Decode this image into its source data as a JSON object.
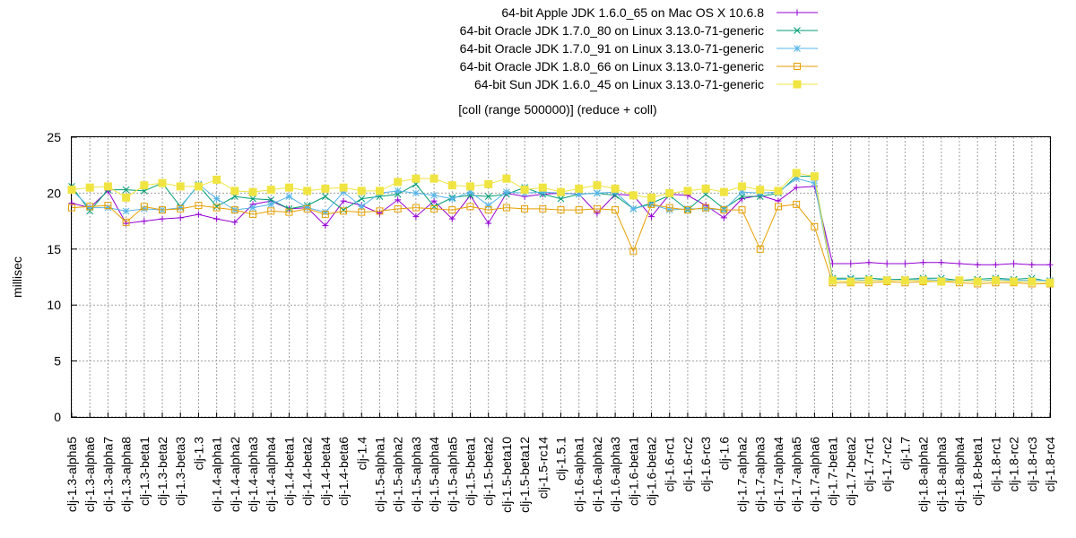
{
  "chart_data": {
    "type": "line",
    "title": "[coll (range 500000)] (reduce + coll)",
    "xlabel": "",
    "ylabel": "millisec",
    "ylim": [
      0,
      25
    ],
    "yticks": [
      0,
      5,
      10,
      15,
      20,
      25
    ],
    "grid": true,
    "legend_position": "top-right",
    "categories": [
      "clj-1.3-alpha5",
      "clj-1.3-alpha6",
      "clj-1.3-alpha7",
      "clj-1.3-alpha8",
      "clj-1.3-beta1",
      "clj-1.3-beta2",
      "clj-1.3-beta3",
      "clj-1.3",
      "clj-1.4-alpha1",
      "clj-1.4-alpha2",
      "clj-1.4-alpha3",
      "clj-1.4-alpha4",
      "clj-1.4-beta1",
      "clj-1.4-beta2",
      "clj-1.4-beta4",
      "clj-1.4-beta6",
      "clj-1.4",
      "clj-1.5-alpha1",
      "clj-1.5-alpha2",
      "clj-1.5-alpha3",
      "clj-1.5-alpha4",
      "clj-1.5-alpha5",
      "clj-1.5-beta1",
      "clj-1.5-beta2",
      "clj-1.5-beta10",
      "clj-1.5-beta12",
      "clj-1.5-rc14",
      "clj-1.5.1",
      "clj-1.6-alpha1",
      "clj-1.6-alpha2",
      "clj-1.6-alpha3",
      "clj-1.6-beta1",
      "clj-1.6-beta2",
      "clj-1.6-rc1",
      "clj-1.6-rc2",
      "clj-1.6-rc3",
      "clj-1.6",
      "clj-1.7-alpha2",
      "clj-1.7-alpha3",
      "clj-1.7-alpha4",
      "clj-1.7-alpha5",
      "clj-1.7-alpha6",
      "clj-1.7-beta1",
      "clj-1.7-beta2",
      "clj-1.7-rc1",
      "clj-1.7-rc2",
      "clj-1.7",
      "clj-1.8-alpha2",
      "clj-1.8-alpha3",
      "clj-1.8-alpha4",
      "clj-1.8-beta1",
      "clj-1.8-rc1",
      "clj-1.8-rc2",
      "clj-1.8-rc3",
      "clj-1.8-rc4"
    ],
    "series": [
      {
        "name": "64-bit Apple JDK 1.6.0_65 on Mac OS X 10.6.8",
        "color": "#9400d3",
        "marker": "plus",
        "values": [
          19.1,
          18.7,
          20.2,
          17.3,
          17.5,
          17.7,
          17.8,
          18.1,
          17.7,
          17.4,
          19.0,
          19.3,
          18.6,
          18.7,
          17.1,
          19.3,
          18.9,
          18.2,
          19.4,
          17.9,
          19.3,
          17.7,
          19.8,
          17.3,
          20.0,
          19.7,
          19.9,
          20.0,
          19.9,
          18.2,
          19.9,
          19.8,
          17.9,
          19.9,
          19.8,
          18.9,
          17.8,
          19.5,
          19.8,
          19.3,
          20.5,
          20.6,
          13.7,
          13.7,
          13.8,
          13.7,
          13.7,
          13.8,
          13.8,
          13.7,
          13.6,
          13.6,
          13.7,
          13.6,
          13.6
        ]
      },
      {
        "name": "64-bit Oracle JDK 1.7.0_80 on Linux 3.13.0-71-generic",
        "color": "#009e73",
        "marker": "x",
        "values": [
          20.6,
          18.4,
          20.3,
          20.3,
          20.2,
          20.9,
          18.8,
          20.7,
          18.8,
          19.7,
          19.5,
          19.4,
          18.6,
          18.9,
          19.7,
          18.5,
          19.5,
          19.7,
          19.9,
          20.8,
          18.8,
          19.6,
          19.8,
          19.7,
          19.9,
          20.5,
          19.9,
          19.5,
          19.9,
          20.0,
          19.8,
          18.6,
          19.1,
          19.8,
          18.5,
          19.9,
          18.6,
          19.7,
          19.7,
          20.0,
          21.5,
          21.5,
          12.4,
          12.4,
          12.4,
          12.3,
          12.3,
          12.4,
          12.4,
          12.2,
          12.3,
          12.4,
          12.3,
          12.4,
          12.1
        ]
      },
      {
        "name": "64-bit Oracle JDK 1.7.0_91 on Linux 3.13.0-71-generic",
        "color": "#56b4e9",
        "marker": "star",
        "values": [
          20.3,
          18.7,
          18.7,
          18.4,
          18.6,
          18.5,
          18.7,
          20.8,
          19.5,
          18.5,
          18.7,
          19.0,
          19.7,
          18.7,
          18.3,
          20.1,
          18.8,
          20.0,
          20.2,
          20.0,
          19.8,
          19.5,
          20.1,
          18.9,
          20.1,
          20.0,
          20.1,
          20.0,
          19.9,
          20.0,
          20.1,
          18.6,
          19.0,
          18.5,
          18.6,
          18.6,
          18.5,
          20.1,
          20.0,
          20.1,
          21.3,
          20.9,
          12.3,
          12.3,
          12.2,
          12.3,
          12.2,
          12.3,
          12.2,
          12.2,
          12.1,
          12.3,
          12.2,
          12.2,
          12.2
        ]
      },
      {
        "name": "64-bit Oracle JDK 1.8.0_66 on Linux 3.13.0-71-generic",
        "color": "#e69f00",
        "marker": "square-open",
        "values": [
          18.7,
          18.8,
          18.9,
          17.4,
          18.8,
          18.5,
          18.6,
          18.9,
          18.7,
          18.5,
          18.1,
          18.4,
          18.3,
          18.6,
          18.1,
          18.4,
          18.3,
          18.4,
          18.6,
          18.7,
          18.6,
          18.5,
          18.8,
          18.5,
          18.7,
          18.6,
          18.6,
          18.5,
          18.5,
          18.6,
          18.5,
          14.8,
          19.0,
          18.7,
          18.5,
          18.7,
          18.5,
          18.5,
          15.0,
          18.8,
          19.0,
          17.0,
          12.0,
          12.0,
          12.0,
          12.1,
          12.0,
          12.1,
          12.1,
          12.0,
          11.9,
          12.0,
          12.0,
          11.9,
          11.9
        ]
      },
      {
        "name": "64-bit Sun JDK 1.6.0_45 on Linux 3.13.0-71-generic",
        "color": "#f0e442",
        "marker": "square-filled",
        "values": [
          20.3,
          20.5,
          20.6,
          19.6,
          20.7,
          20.9,
          20.6,
          20.6,
          21.2,
          20.2,
          20.1,
          20.3,
          20.5,
          20.2,
          20.4,
          20.5,
          20.2,
          20.2,
          21.0,
          21.3,
          21.3,
          20.7,
          20.6,
          20.8,
          21.3,
          20.3,
          20.5,
          20.1,
          20.4,
          20.7,
          20.4,
          19.8,
          19.6,
          20.0,
          20.2,
          20.4,
          20.1,
          20.6,
          20.3,
          20.2,
          21.8,
          21.5,
          12.2,
          12.1,
          12.2,
          12.2,
          12.2,
          12.2,
          12.1,
          12.2,
          12.1,
          12.2,
          12.1,
          12.1,
          12.0
        ]
      }
    ]
  }
}
